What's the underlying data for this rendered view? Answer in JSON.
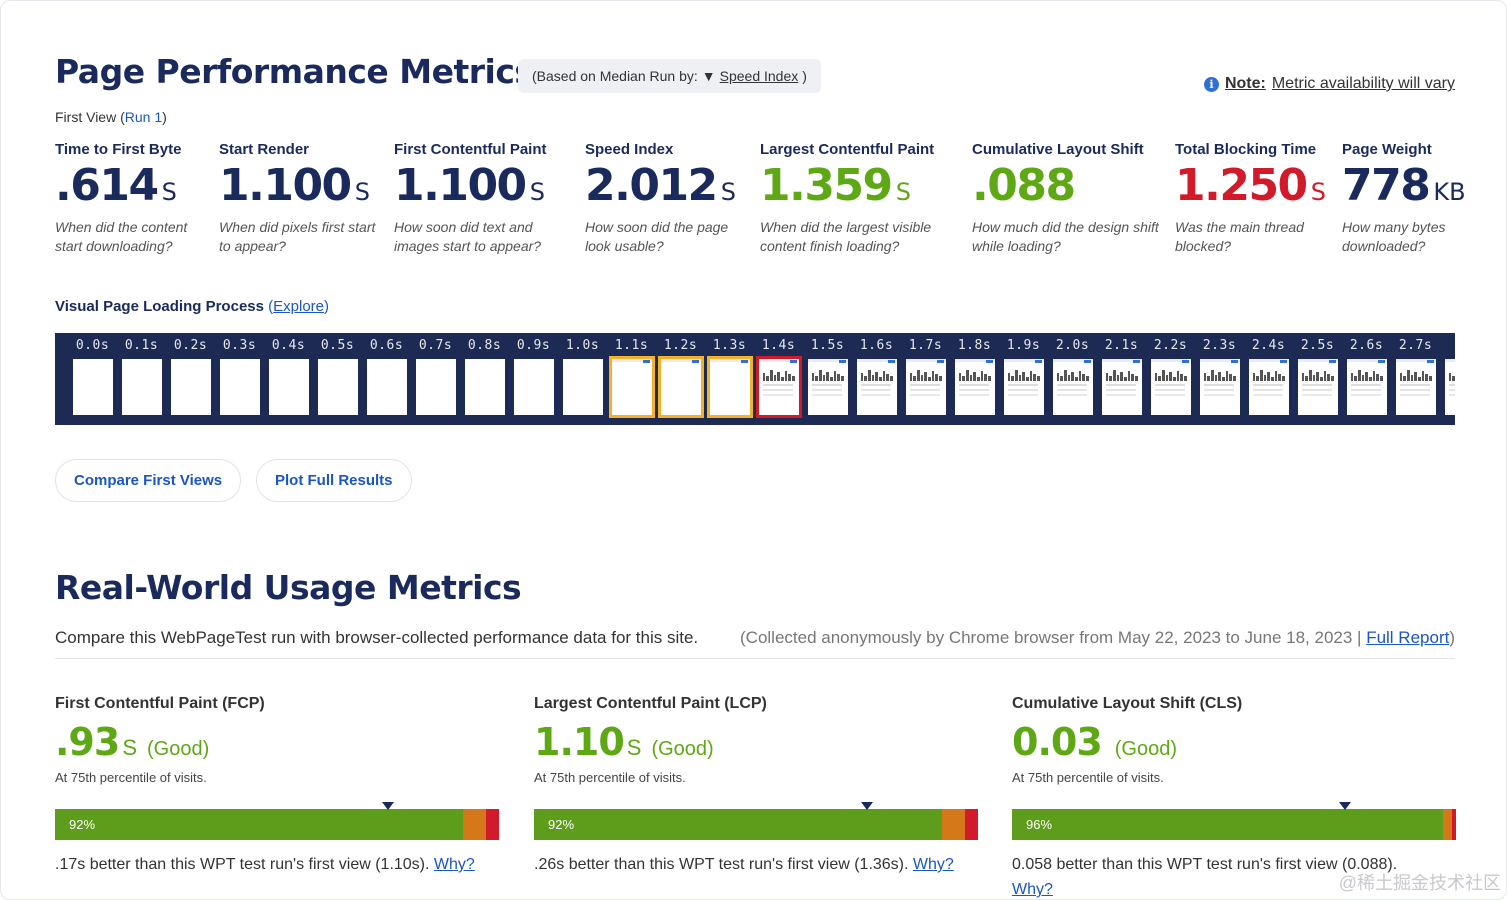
{
  "perf": {
    "title": "Page Performance Metrics",
    "median_prefix": "(Based on Median Run by:",
    "median_arrow": "▼",
    "median_metric": "Speed Index",
    "median_close": ")",
    "note_label": "Note:",
    "note_text": "Metric availability will vary",
    "first_view": "First View (",
    "run_link": "Run 1",
    "first_view_close": ")"
  },
  "metrics": [
    {
      "label": "Time to First Byte",
      "value": ".614",
      "unit": "S",
      "desc": "When did the content start downloading?"
    },
    {
      "label": "Start Render",
      "value": "1.100",
      "unit": "S",
      "desc": "When did pixels first start to appear?"
    },
    {
      "label": "First Contentful Paint",
      "value": "1.100",
      "unit": "S",
      "desc": "How soon did text and images start to appear?"
    },
    {
      "label": "Speed Index",
      "value": "2.012",
      "unit": "S",
      "desc": "How soon did the page look usable?"
    },
    {
      "label": "Largest Contentful Paint",
      "value": "1.359",
      "unit": "S",
      "desc": "When did the largest visible content finish loading?"
    },
    {
      "label": "Cumulative Layout Shift",
      "value": ".088",
      "unit": "",
      "desc": "How much did the design shift while loading?"
    },
    {
      "label": "Total Blocking Time",
      "value": "1.250",
      "unit": "S",
      "desc": "Was the main thread blocked?"
    },
    {
      "label": "Page Weight",
      "value": "778",
      "unit": "KB",
      "desc": "How many bytes downloaded?"
    }
  ],
  "metric_status": {
    "lcp": "good",
    "cls": "good",
    "tbt": "poor"
  },
  "filmstrip": {
    "title": "Visual Page Loading Process",
    "explore_open": " (",
    "explore": "Explore",
    "explore_close": ")",
    "frames": [
      "0.0s",
      "0.1s",
      "0.2s",
      "0.3s",
      "0.4s",
      "0.5s",
      "0.6s",
      "0.7s",
      "0.8s",
      "0.9s",
      "1.0s",
      "1.1s",
      "1.2s",
      "1.3s",
      "1.4s",
      "1.5s",
      "1.6s",
      "1.7s",
      "1.8s",
      "1.9s",
      "2.0s",
      "2.1s",
      "2.2s",
      "2.3s",
      "2.4s",
      "2.5s",
      "2.6s",
      "2.7s",
      "2"
    ],
    "changed_frames": [
      "1.1s",
      "1.2s",
      "1.3s"
    ],
    "lcp_frame": "1.4s",
    "blank_until_index": 11,
    "content_from_index": 14
  },
  "buttons": {
    "compare": "Compare First Views",
    "plot": "Plot Full Results"
  },
  "realworld": {
    "title": "Real-World Usage Metrics",
    "intro": "Compare this WebPageTest run with browser-collected performance data for this site.",
    "collected": "(Collected anonymously by Chrome browser from May 22, 2023 to June 18, 2023 | ",
    "full_report": "Full Report",
    "collected_close": ")",
    "cards": [
      {
        "label": "First Contentful Paint (FCP)",
        "value": ".93",
        "unit": "S",
        "rating": "(Good)",
        "percentile": "At 75th percentile of visits.",
        "good_pct_label": "92%",
        "good": 92,
        "ni": 5,
        "poor": 3,
        "marker": 0.75,
        "comparison": ".17s better than this WPT test run's first view (1.10s).",
        "why": "Why?"
      },
      {
        "label": "Largest Contentful Paint (LCP)",
        "value": "1.10",
        "unit": "S",
        "rating": "(Good)",
        "percentile": "At 75th percentile of visits.",
        "good_pct_label": "92%",
        "good": 92,
        "ni": 5,
        "poor": 3,
        "marker": 0.75,
        "comparison": ".26s better than this WPT test run's first view (1.36s).",
        "why": "Why?"
      },
      {
        "label": "Cumulative Layout Shift (CLS)",
        "value": "0.03",
        "unit": "",
        "rating": "(Good)",
        "percentile": "At 75th percentile of visits.",
        "good_pct_label": "96%",
        "good": 96,
        "ni": 2,
        "poor": 1,
        "marker": 0.75,
        "comparison": "0.058 better than this WPT test run's first view (0.088).",
        "why": "Why?"
      }
    ]
  },
  "watermark": "@稀土掘金技术社区",
  "colors": {
    "navy": "#1a2a5c",
    "link": "#1a56c5",
    "good": "#5fa815",
    "poor": "#d11a2a",
    "needs_improvement": "#d4781a",
    "filmstrip_bg": "#1c2a54",
    "changed_frame": "#f4b228"
  }
}
